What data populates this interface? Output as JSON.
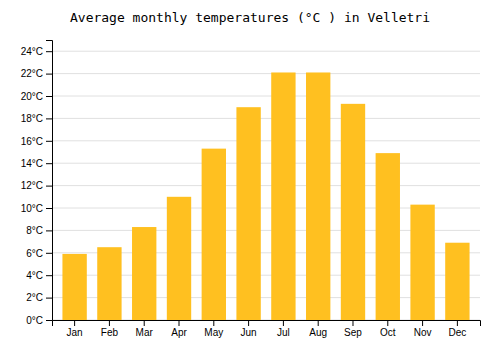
{
  "chart_data": {
    "type": "bar",
    "title": "Average monthly temperatures (°C ) in Velletri",
    "categories": [
      "Jan",
      "Feb",
      "Mar",
      "Apr",
      "May",
      "Jun",
      "Jul",
      "Aug",
      "Sep",
      "Oct",
      "Nov",
      "Dec"
    ],
    "values": [
      5.9,
      6.5,
      8.3,
      11.0,
      15.3,
      19.0,
      22.1,
      22.1,
      19.3,
      14.9,
      10.3,
      6.9
    ],
    "color": "#FFC020",
    "ylim": [
      0,
      25
    ],
    "yticks": [
      {
        "value": 0,
        "label": "0°C"
      },
      {
        "value": 2,
        "label": "2°C"
      },
      {
        "value": 4,
        "label": "4°C"
      },
      {
        "value": 6,
        "label": "6°C"
      },
      {
        "value": 8,
        "label": "8°C"
      },
      {
        "value": 10,
        "label": "10°C"
      },
      {
        "value": 12,
        "label": "12°C"
      },
      {
        "value": 14,
        "label": "14°C"
      },
      {
        "value": 16,
        "label": "16°C"
      },
      {
        "value": 18,
        "label": "18°C"
      },
      {
        "value": 20,
        "label": "20°C"
      },
      {
        "value": 22,
        "label": "22°C"
      },
      {
        "value": 24,
        "label": "24°C"
      }
    ],
    "grid": true
  }
}
